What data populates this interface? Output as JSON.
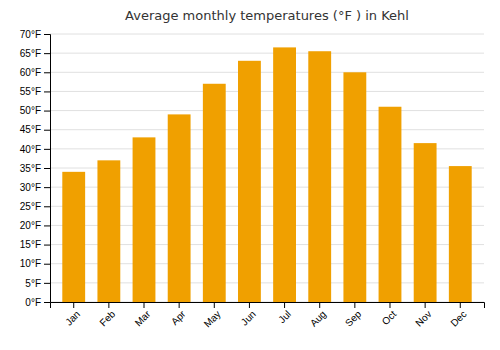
{
  "chart_data": {
    "type": "bar",
    "title": "Average monthly temperatures (°F ) in Kehl",
    "categories": [
      "Jan",
      "Feb",
      "Mar",
      "Apr",
      "May",
      "Jun",
      "Jul",
      "Aug",
      "Sep",
      "Oct",
      "Nov",
      "Dec"
    ],
    "values": [
      34,
      37,
      43,
      49,
      57,
      63,
      66.5,
      65.5,
      60,
      51,
      41.5,
      35.5
    ],
    "color": "#F0A000",
    "ylim": [
      0,
      70
    ],
    "yticks": [
      {
        "value": 0,
        "label": "0°F"
      },
      {
        "value": 5,
        "label": "5°F"
      },
      {
        "value": 10,
        "label": "10°F"
      },
      {
        "value": 15,
        "label": "15°F"
      },
      {
        "value": 20,
        "label": "20°F"
      },
      {
        "value": 25,
        "label": "25°F"
      },
      {
        "value": 30,
        "label": "30°F"
      },
      {
        "value": 35,
        "label": "35°F"
      },
      {
        "value": 40,
        "label": "40°F"
      },
      {
        "value": 45,
        "label": "45°F"
      },
      {
        "value": 50,
        "label": "50°F"
      },
      {
        "value": 55,
        "label": "55°F"
      },
      {
        "value": 60,
        "label": "60°F"
      },
      {
        "value": 65,
        "label": "65°F"
      },
      {
        "value": 70,
        "label": "70°F"
      }
    ],
    "grid": true
  }
}
